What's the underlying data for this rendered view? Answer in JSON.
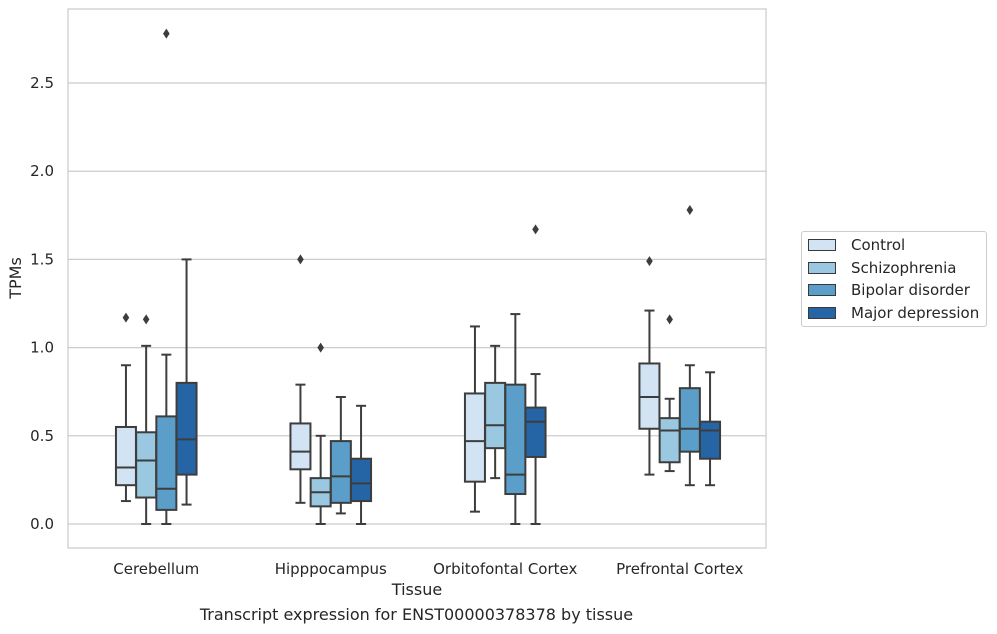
{
  "caption": "Transcript expression for ENST00000378378 by tissue",
  "chart_data": {
    "type": "box",
    "xlabel": "Tissue",
    "ylabel": "TPMs",
    "ylim": [
      -0.13,
      2.9
    ],
    "yticks": [
      0.0,
      0.5,
      1.0,
      1.5,
      2.0,
      2.5
    ],
    "ytick_labels": [
      "0.0",
      "0.5",
      "1.0",
      "1.5",
      "2.0",
      "2.5"
    ],
    "grid": "horizontal",
    "legend_position": "right",
    "categories": [
      "Cerebellum",
      "Hipppocampus",
      "Orbitofontal Cortex",
      "Prefrontal Cortex"
    ],
    "series": [
      {
        "name": "Control",
        "color": "#d2e3f3",
        "boxes": [
          {
            "whislo": 0.13,
            "q1": 0.22,
            "med": 0.32,
            "q3": 0.55,
            "whishi": 0.9,
            "fliers": [
              1.17
            ]
          },
          {
            "whislo": 0.12,
            "q1": 0.31,
            "med": 0.41,
            "q3": 0.57,
            "whishi": 0.79,
            "fliers": [
              1.5
            ]
          },
          {
            "whislo": 0.07,
            "q1": 0.24,
            "med": 0.47,
            "q3": 0.74,
            "whishi": 1.12,
            "fliers": []
          },
          {
            "whislo": 0.28,
            "q1": 0.54,
            "med": 0.72,
            "q3": 0.91,
            "whishi": 1.21,
            "fliers": [
              1.49
            ]
          }
        ]
      },
      {
        "name": "Schizophrenia",
        "color": "#9ac8e0",
        "boxes": [
          {
            "whislo": 0.0,
            "q1": 0.15,
            "med": 0.36,
            "q3": 0.52,
            "whishi": 1.01,
            "fliers": [
              1.16
            ]
          },
          {
            "whislo": 0.0,
            "q1": 0.1,
            "med": 0.18,
            "q3": 0.26,
            "whishi": 0.5,
            "fliers": [
              1.0
            ]
          },
          {
            "whislo": 0.26,
            "q1": 0.43,
            "med": 0.56,
            "q3": 0.8,
            "whishi": 1.01,
            "fliers": []
          },
          {
            "whislo": 0.3,
            "q1": 0.35,
            "med": 0.53,
            "q3": 0.6,
            "whishi": 0.71,
            "fliers": [
              1.16
            ]
          }
        ]
      },
      {
        "name": "Bipolar disorder",
        "color": "#5a9ec9",
        "boxes": [
          {
            "whislo": 0.0,
            "q1": 0.08,
            "med": 0.2,
            "q3": 0.61,
            "whishi": 0.96,
            "fliers": [
              2.78
            ]
          },
          {
            "whislo": 0.06,
            "q1": 0.12,
            "med": 0.27,
            "q3": 0.47,
            "whishi": 0.72,
            "fliers": []
          },
          {
            "whislo": 0.0,
            "q1": 0.17,
            "med": 0.28,
            "q3": 0.79,
            "whishi": 1.19,
            "fliers": []
          },
          {
            "whislo": 0.22,
            "q1": 0.41,
            "med": 0.54,
            "q3": 0.77,
            "whishi": 0.9,
            "fliers": [
              1.78
            ]
          }
        ]
      },
      {
        "name": "Major depression",
        "color": "#2565a6",
        "boxes": [
          {
            "whislo": 0.11,
            "q1": 0.28,
            "med": 0.48,
            "q3": 0.8,
            "whishi": 1.5,
            "fliers": []
          },
          {
            "whislo": 0.0,
            "q1": 0.13,
            "med": 0.23,
            "q3": 0.37,
            "whishi": 0.67,
            "fliers": []
          },
          {
            "whislo": 0.0,
            "q1": 0.38,
            "med": 0.58,
            "q3": 0.66,
            "whishi": 0.85,
            "fliers": [
              1.67
            ]
          },
          {
            "whislo": 0.22,
            "q1": 0.37,
            "med": 0.53,
            "q3": 0.58,
            "whishi": 0.86,
            "fliers": []
          }
        ]
      }
    ]
  }
}
